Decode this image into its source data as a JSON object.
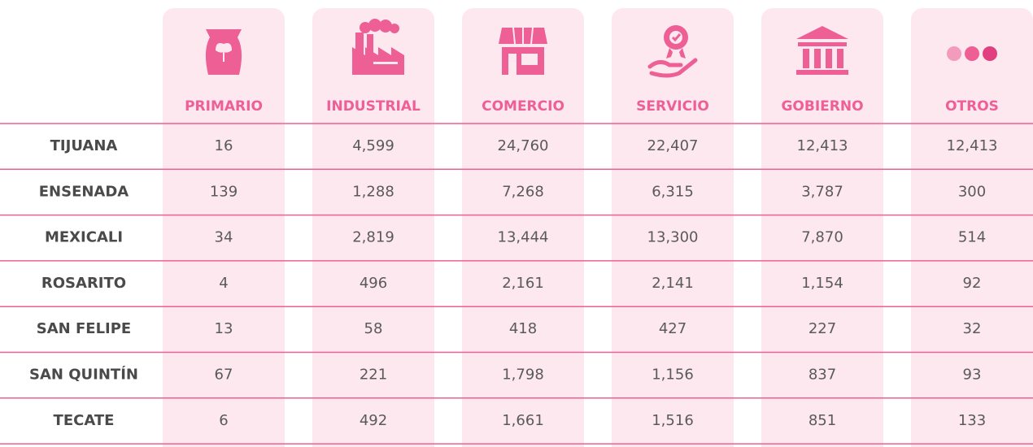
{
  "table": {
    "columns": [
      "PRIMARIO",
      "INDUSTRIAL",
      "COMERCIO",
      "SERVICIO",
      "GOBIERNO",
      "OTROS"
    ],
    "rows": [
      {
        "label": "TIJUANA",
        "cells": [
          "16",
          "4,599",
          "24,760",
          "22,407",
          "12,413",
          "12,413"
        ]
      },
      {
        "label": "ENSENADA",
        "cells": [
          "139",
          "1,288",
          "7,268",
          "6,315",
          "3,787",
          "300"
        ]
      },
      {
        "label": "MEXICALI",
        "cells": [
          "34",
          "2,819",
          "13,444",
          "13,300",
          "7,870",
          "514"
        ]
      },
      {
        "label": "ROSARITO",
        "cells": [
          "4",
          "496",
          "2,161",
          "2,141",
          "1,154",
          "92"
        ]
      },
      {
        "label": "SAN FELIPE",
        "cells": [
          "13",
          "58",
          "418",
          "427",
          "227",
          "32"
        ]
      },
      {
        "label": "SAN QUINTÍN",
        "cells": [
          "67",
          "221",
          "1,798",
          "1,156",
          "837",
          "93"
        ]
      },
      {
        "label": "TECATE",
        "cells": [
          "6",
          "492",
          "1,661",
          "1,516",
          "851",
          "133"
        ]
      }
    ]
  }
}
